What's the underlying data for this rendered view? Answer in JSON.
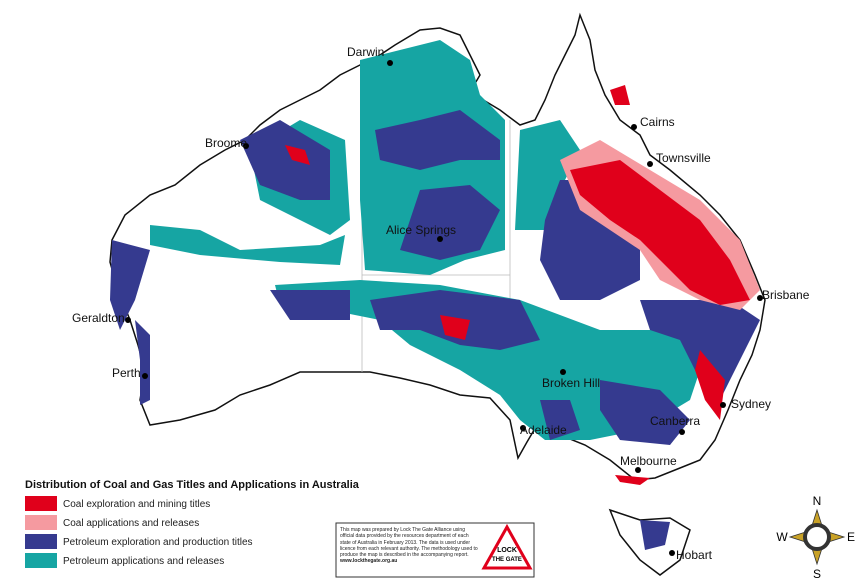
{
  "map": {
    "cities": [
      "Darwin",
      "Cairns",
      "Townsville",
      "Broome",
      "Alice Springs",
      "Brisbane",
      "Geraldton",
      "Perth",
      "Broken Hill",
      "Adelaide",
      "Canberra",
      "Sydney",
      "Melbourne",
      "Hobart"
    ]
  },
  "legend": {
    "title": "Distribution of Coal and Gas Titles and Applications in Australia",
    "items": [
      {
        "label": "Coal exploration and mining titles",
        "color": "#e0001b"
      },
      {
        "label": "Coal applications and releases",
        "color": "#f59aa0"
      },
      {
        "label": "Petroleum exploration and production titles",
        "color": "#353a8f"
      },
      {
        "label": "Petroleum applications and releases",
        "color": "#16a5a3"
      }
    ]
  },
  "note": {
    "text": "This map was prepared by Lock The Gate Alliance using official data provided by the resources department of each state of Australia in February 2013. The data is used under licence from each relevant authority. The methodology used to produce the map is described in the accompanying report.",
    "link": "www.lockthegate.org.au"
  },
  "logo": {
    "top": "LOCK",
    "bottom": "THE GATE"
  },
  "compass": {
    "n": "N",
    "e": "E",
    "s": "S",
    "w": "W"
  }
}
